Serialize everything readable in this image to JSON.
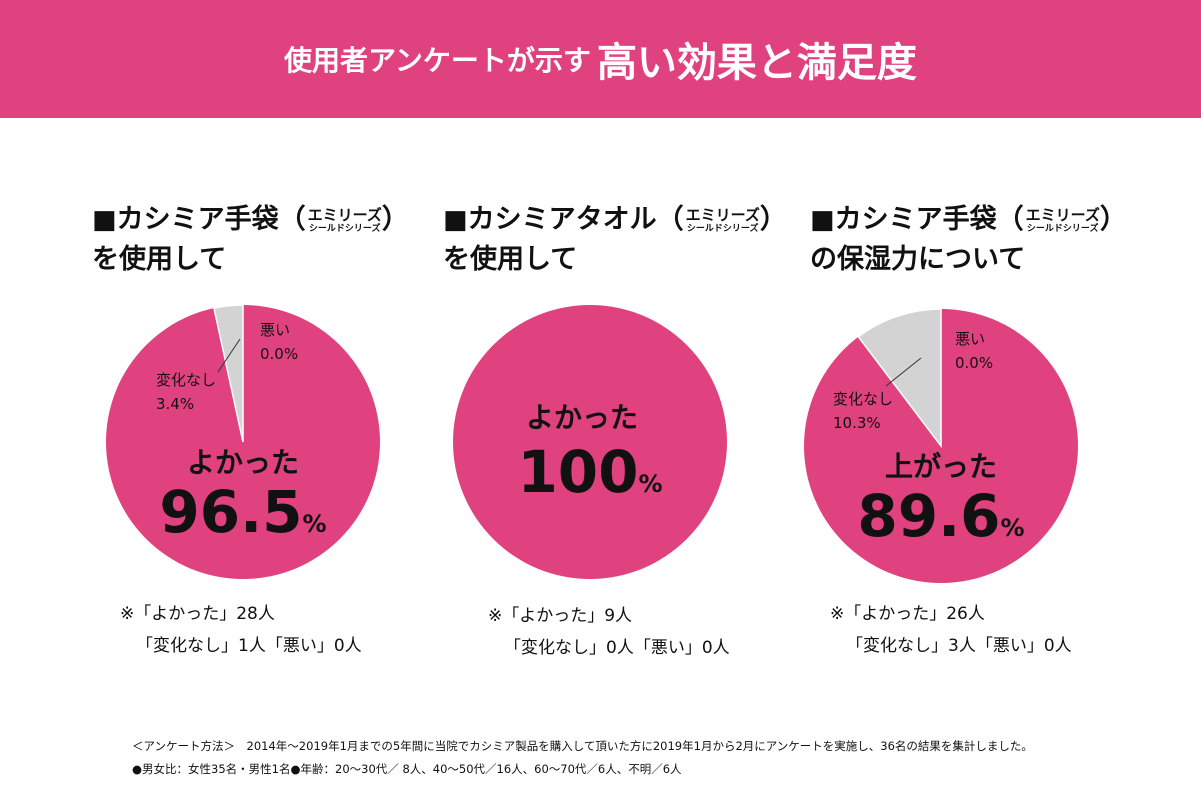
{
  "header": {
    "title_part1": "使用者アンケートが示す",
    "title_part2": "高い効果と満足度"
  },
  "colors": {
    "accent": "#e0417f",
    "neutral": "#d3d3d3"
  },
  "chart_data": [
    {
      "type": "pie",
      "title_line1": "カシミア手袋",
      "title_sub1": "エミリーズ",
      "title_sub2": "シールドシリーズ",
      "title_line2": "を使用して",
      "slices": [
        {
          "label": "よかった",
          "value": 96.5
        },
        {
          "label": "変化なし",
          "value": 3.4
        },
        {
          "label": "悪い",
          "value": 0.0
        }
      ],
      "main_label": "よかった",
      "main_value": "96.5",
      "other_labels": [
        {
          "name": "変化なし",
          "value": "3.4%"
        },
        {
          "name": "悪い",
          "value": "0.0%"
        }
      ],
      "note1": "※「よかった」28人",
      "note2": "「変化なし」1人「悪い」0人"
    },
    {
      "type": "pie",
      "title_line1": "カシミアタオル",
      "title_sub1": "エミリーズ",
      "title_sub2": "シールドシリーズ",
      "title_line2": "を使用して",
      "slices": [
        {
          "label": "よかった",
          "value": 100
        }
      ],
      "main_label": "よかった",
      "main_value": "100",
      "note1": "※「よかった」9人",
      "note2": "「変化なし」0人「悪い」0人"
    },
    {
      "type": "pie",
      "title_line1": "カシミア手袋",
      "title_sub1": "エミリーズ",
      "title_sub2": "シールドシリーズ",
      "title_line2": "の保湿力について",
      "slices": [
        {
          "label": "上がった",
          "value": 89.6
        },
        {
          "label": "変化なし",
          "value": 10.3
        },
        {
          "label": "悪い",
          "value": 0.0
        }
      ],
      "main_label": "上がった",
      "main_value": "89.6",
      "other_labels": [
        {
          "name": "変化なし",
          "value": "10.3%"
        },
        {
          "name": "悪い",
          "value": "0.0%"
        }
      ],
      "note1": "※「よかった」26人",
      "note2": "「変化なし」3人「悪い」0人"
    }
  ],
  "percent_sign": "%",
  "footer": {
    "line1": "＜アンケート方法＞　2014年～2019年1月までの5年間に当院でカシミア製品を購入して頂いた方に2019年1月から2月にアンケートを実施し、36名の結果を集計しました。",
    "line2": "●男女比：女性35名・男性1名●年齢：20～30代／ 8人、40～50代／16人、60～70代／6人、不明／6人"
  }
}
